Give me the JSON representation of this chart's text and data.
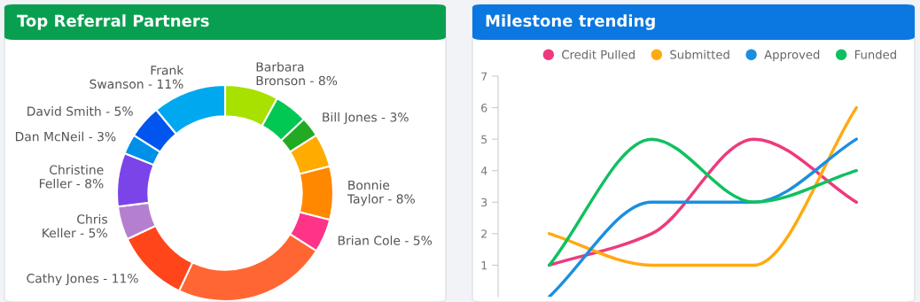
{
  "chart_data": [
    {
      "type": "donut",
      "title": "Top Referral Partners",
      "categories": [
        "Barbara Bronson",
        null,
        "Bill Jones",
        null,
        "Bonnie Taylor",
        "Brian Cole",
        null,
        "Cathy Jones",
        "Chris Keller",
        "Christine Feller",
        "Dan McNeil",
        "David Smith",
        "Frank Swanson"
      ],
      "values": [
        8,
        5,
        3,
        5,
        8,
        5,
        23,
        11,
        5,
        8,
        3,
        5,
        11
      ],
      "value_labels": [
        "8%",
        null,
        "3%",
        null,
        "8%",
        "5%",
        null,
        "11%",
        "5%",
        "8%",
        "3%",
        "5%",
        "11%"
      ],
      "colors": [
        "#a8e000",
        "#00c853",
        "#22aa22",
        "#ffab00",
        "#ff8800",
        "#ff3388",
        "#ff6633",
        "#ff4519",
        "#b57fd0",
        "#7b44e8",
        "#0090e8",
        "#0055ee",
        "#00a8f0"
      ]
    },
    {
      "type": "line",
      "title": "Milestone trending",
      "categories": [
        null,
        null,
        null,
        null
      ],
      "series": [
        {
          "name": "Credit Pulled",
          "color": "#ee3a7c",
          "values": [
            1,
            2,
            5,
            3
          ]
        },
        {
          "name": "Submitted",
          "color": "#ffaa11",
          "values": [
            2,
            1,
            1,
            6
          ]
        },
        {
          "name": "Approved",
          "color": "#1a8fe0",
          "values": [
            0,
            3,
            3,
            5
          ]
        },
        {
          "name": "Funded",
          "color": "#10c060",
          "values": [
            1,
            5,
            3,
            4
          ]
        }
      ],
      "ylim": [
        0,
        7
      ],
      "yticks": [
        1,
        2,
        3,
        4,
        5,
        6,
        7
      ],
      "grid": false,
      "legend": "top right",
      "marker": "none",
      "line_style": "solid"
    }
  ]
}
